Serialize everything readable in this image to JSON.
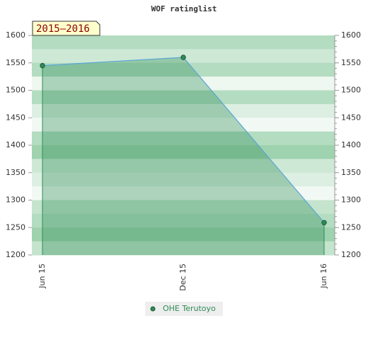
{
  "chart_data": {
    "type": "area",
    "title": "WOF ratinglist",
    "annotation": "2015–2016",
    "categories": [
      "Jun 15",
      "Dec 15",
      "Jun 16"
    ],
    "series": [
      {
        "name": "OHE Terutoyo",
        "color": "#2e8b57",
        "line_color": "#5aa6d6",
        "values": [
          1545,
          1560,
          1259
        ]
      }
    ],
    "ylim": [
      1200,
      1600
    ],
    "yticks": [
      1200,
      1250,
      1300,
      1350,
      1400,
      1450,
      1500,
      1550,
      1600
    ],
    "y2lim": [
      1200,
      1600
    ],
    "y2ticks": [
      1200,
      1250,
      1300,
      1350,
      1400,
      1450,
      1500,
      1550,
      1600
    ]
  }
}
